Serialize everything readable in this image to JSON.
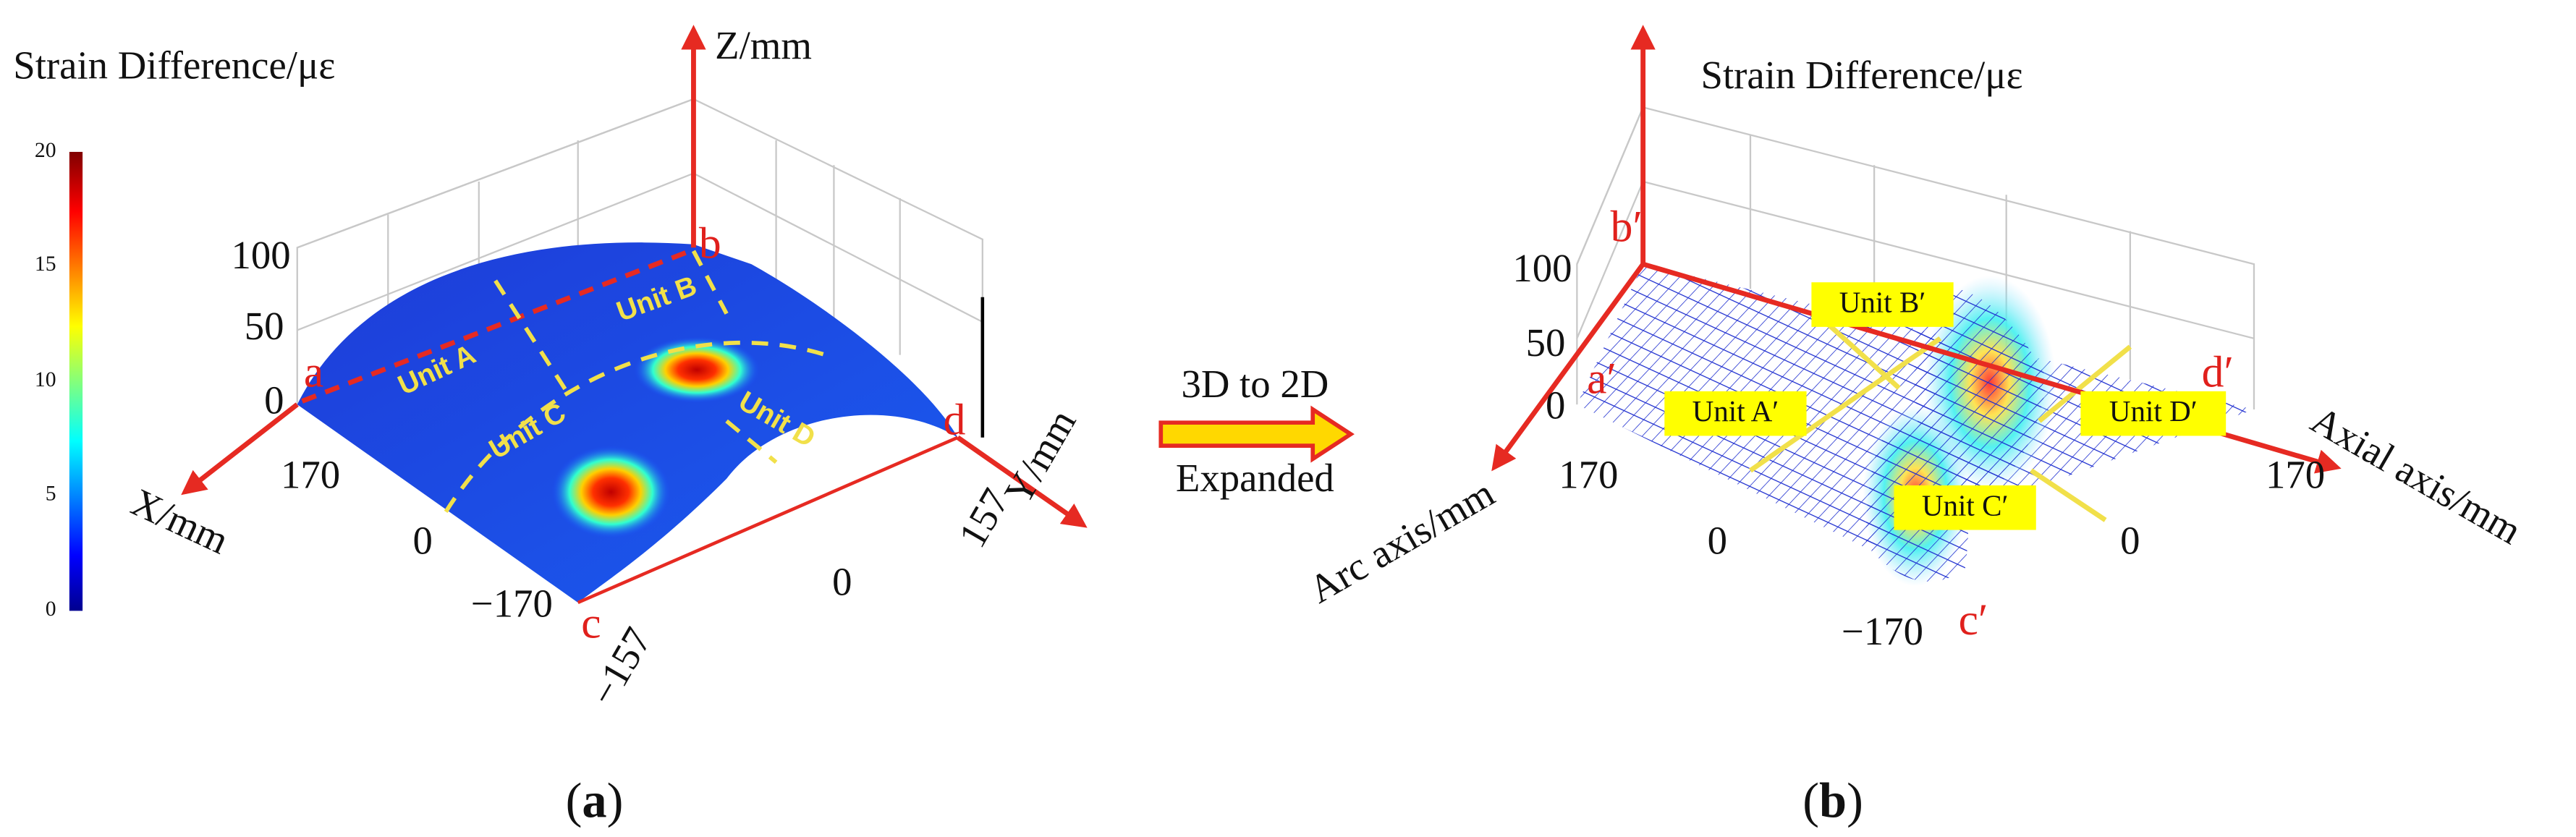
{
  "panel_a": {
    "caption": "(a)",
    "colorbar_title": "Strain Difference/με",
    "colorbar_ticks": [
      "0",
      "5",
      "10",
      "15",
      "20"
    ],
    "z_label": "Z/mm",
    "z_ticks": [
      "0",
      "50",
      "100"
    ],
    "x_label": "X/mm",
    "x_ticks": [
      "170",
      "0",
      "−170"
    ],
    "y_label": "Y/mm",
    "y_ticks": [
      "157",
      "0",
      "−157"
    ],
    "corners": [
      "a",
      "b",
      "c",
      "d"
    ],
    "units": [
      "Unit A",
      "Unit B",
      "Unit C",
      "Unit D"
    ]
  },
  "arrow": {
    "top": "3D to 2D",
    "bottom": "Expanded"
  },
  "panel_b": {
    "caption": "(b)",
    "z_label": "Strain Difference/με",
    "z_ticks": [
      "0",
      "50",
      "100"
    ],
    "arc_label": "Arc axis/mm",
    "arc_ticks": [
      "170",
      "0",
      "−170"
    ],
    "axial_label": "Axial axis/mm",
    "axial_ticks": [
      "170",
      "0"
    ],
    "corners": [
      "a′",
      "b′",
      "c′",
      "d′"
    ],
    "units": [
      "Unit A′",
      "Unit B′",
      "Unit C′",
      "Unit D′"
    ]
  }
}
